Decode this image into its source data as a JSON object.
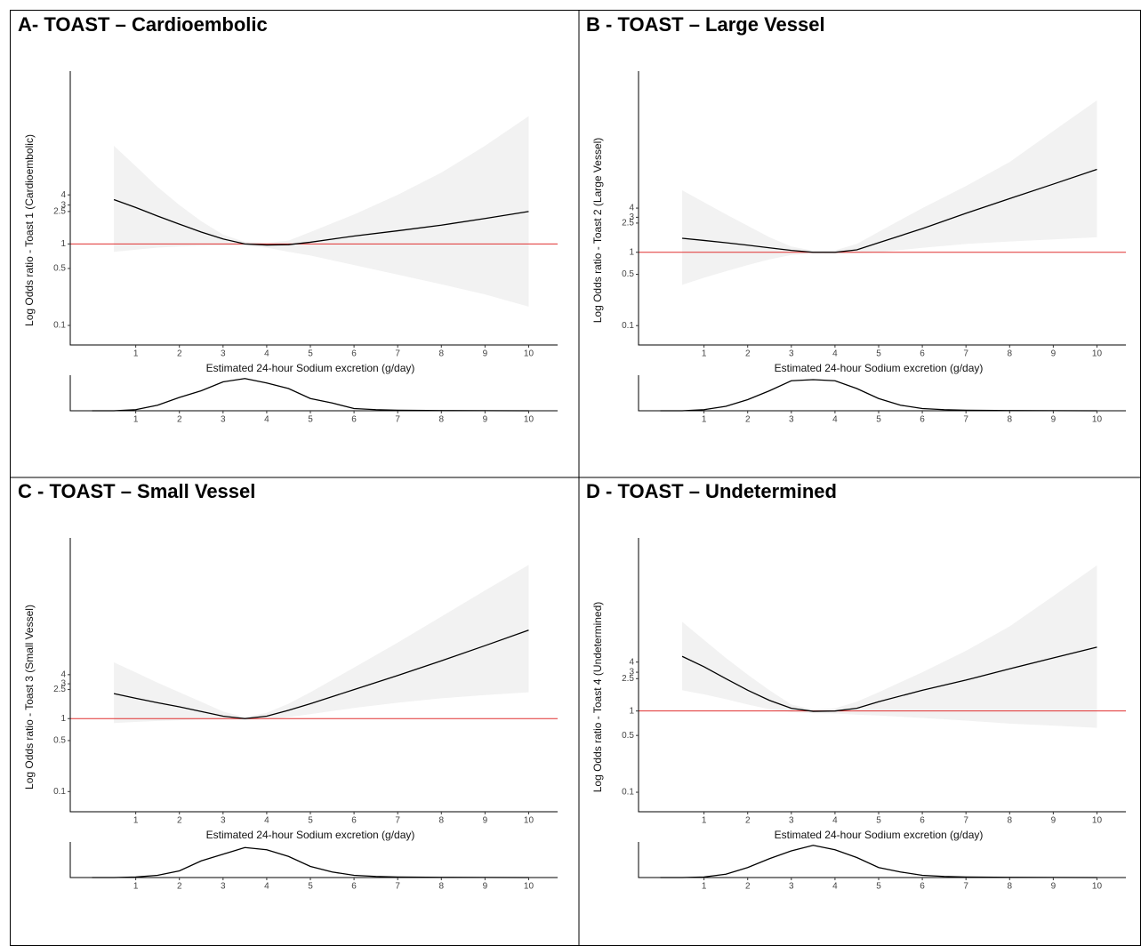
{
  "chart_data": [
    {
      "type": "line",
      "title": "A- TOAST – Cardioembolic",
      "x_label": "Estimated 24-hour Sodium excretion (g/day)",
      "y_label": "Log Odds ratio - Toast 1 (Cardioembolic)",
      "x": [
        0.5,
        1,
        1.5,
        2,
        2.5,
        3,
        3.5,
        4,
        4.5,
        5,
        6,
        7,
        8,
        9,
        10
      ],
      "values": [
        3.5,
        2.8,
        2.2,
        1.75,
        1.4,
        1.15,
        1.0,
        0.97,
        0.98,
        1.05,
        1.25,
        1.45,
        1.7,
        2.05,
        2.5
      ],
      "band_upper": [
        16,
        9,
        5,
        3,
        1.9,
        1.3,
        1.06,
        1.03,
        1.1,
        1.4,
        2.3,
        4,
        7.5,
        16,
        37
      ],
      "band_lower": [
        0.8,
        0.85,
        0.9,
        0.93,
        0.95,
        0.96,
        0.95,
        0.9,
        0.8,
        0.72,
        0.55,
        0.42,
        0.32,
        0.24,
        0.17
      ],
      "color": "#000000",
      "band_color": "#f2f2f2",
      "reference_line": 1,
      "reference_color": "#e03030",
      "log_y": true,
      "xlim": [
        -0.5,
        10.5
      ],
      "ylim": [
        0.074,
        132
      ],
      "xticks": [
        1,
        2,
        3,
        4,
        5,
        6,
        7,
        8,
        9,
        10
      ],
      "yticks": [
        0.1,
        0.5,
        1,
        2.5,
        3,
        4
      ]
    },
    {
      "type": "density",
      "x": [
        0,
        0.5,
        1,
        1.5,
        2,
        2.5,
        3,
        3.5,
        4,
        4.5,
        5,
        5.5,
        6,
        6.5,
        7,
        8,
        9,
        10
      ],
      "values": [
        0,
        0,
        0.01,
        0.05,
        0.12,
        0.18,
        0.26,
        0.29,
        0.25,
        0.2,
        0.11,
        0.07,
        0.02,
        0.01,
        0.005,
        0.002,
        0.001,
        0
      ],
      "color": "#000000",
      "xlim": [
        -0.5,
        10.5
      ],
      "ylim": [
        0,
        0.32
      ],
      "xticks": [
        1,
        2,
        3,
        4,
        5,
        6,
        7,
        8,
        9,
        10
      ]
    },
    {
      "type": "line",
      "title": "B - TOAST – Large Vessel",
      "x_label": "Estimated 24-hour Sodium excretion (g/day)",
      "y_label": "Log Odds ratio - Toast 2 (Large Vessel)",
      "x": [
        0.5,
        1,
        1.5,
        2,
        2.5,
        3,
        3.5,
        4,
        4.5,
        5,
        6,
        7,
        8,
        9,
        10
      ],
      "values": [
        1.55,
        1.45,
        1.35,
        1.25,
        1.15,
        1.06,
        1.0,
        1.0,
        1.08,
        1.35,
        2.1,
        3.4,
        5.4,
        8.5,
        13.5
      ],
      "band_upper": [
        7,
        4.8,
        3.3,
        2.3,
        1.6,
        1.2,
        1.05,
        1.06,
        1.3,
        1.9,
        4,
        8,
        17,
        45,
        118
      ],
      "band_lower": [
        0.36,
        0.45,
        0.55,
        0.67,
        0.8,
        0.92,
        0.96,
        0.95,
        0.97,
        1.0,
        1.15,
        1.3,
        1.4,
        1.5,
        1.6
      ],
      "color": "#000000",
      "band_color": "#f2f2f2",
      "reference_line": 1,
      "reference_color": "#e03030",
      "log_y": true,
      "xlim": [
        -0.5,
        10.5
      ],
      "ylim": [
        0.072,
        295
      ],
      "xticks": [
        1,
        2,
        3,
        4,
        5,
        6,
        7,
        8,
        9,
        10
      ],
      "yticks": [
        0.1,
        0.5,
        1,
        2.5,
        3,
        4
      ]
    },
    {
      "type": "density",
      "x": [
        0,
        0.5,
        1,
        1.5,
        2,
        2.5,
        3,
        3.5,
        4,
        4.5,
        5,
        5.5,
        6,
        6.5,
        7,
        8,
        9,
        10
      ],
      "values": [
        0,
        0,
        0.01,
        0.04,
        0.1,
        0.18,
        0.27,
        0.28,
        0.27,
        0.2,
        0.11,
        0.05,
        0.02,
        0.01,
        0.005,
        0.002,
        0.001,
        0
      ],
      "color": "#000000",
      "xlim": [
        -0.5,
        10.5
      ],
      "ylim": [
        0,
        0.32
      ],
      "xticks": [
        1,
        2,
        3,
        4,
        5,
        6,
        7,
        8,
        9,
        10
      ]
    },
    {
      "type": "line",
      "title": "C - TOAST – Small Vessel",
      "x_label": "Estimated 24-hour Sodium excretion (g/day)",
      "y_label": "Log Odds ratio - Toast 3 (Small Vessel)",
      "x": [
        0.5,
        1,
        1.5,
        2,
        2.5,
        3,
        3.5,
        4,
        4.5,
        5,
        6,
        7,
        8,
        9,
        10
      ],
      "values": [
        2.2,
        1.9,
        1.65,
        1.45,
        1.25,
        1.08,
        1.0,
        1.08,
        1.3,
        1.6,
        2.5,
        3.9,
        6.2,
        10,
        16.3
      ],
      "band_upper": [
        5.9,
        4.3,
        3.1,
        2.3,
        1.7,
        1.25,
        1.05,
        1.2,
        1.6,
        2.3,
        5,
        11,
        25,
        57,
        128
      ],
      "band_lower": [
        0.87,
        0.9,
        0.93,
        0.95,
        0.97,
        0.97,
        0.96,
        0.98,
        1.05,
        1.15,
        1.4,
        1.65,
        1.9,
        2.1,
        2.3
      ],
      "color": "#000000",
      "band_color": "#f2f2f2",
      "reference_line": 1,
      "reference_color": "#e03030",
      "log_y": true,
      "xlim": [
        -0.5,
        10.5
      ],
      "ylim": [
        0.07,
        300
      ],
      "xticks": [
        1,
        2,
        3,
        4,
        5,
        6,
        7,
        8,
        9,
        10
      ],
      "yticks": [
        0.1,
        0.5,
        1,
        2.5,
        3,
        4
      ]
    },
    {
      "type": "density",
      "x": [
        0,
        0.5,
        1,
        1.5,
        2,
        2.5,
        3,
        3.5,
        4,
        4.5,
        5,
        5.5,
        6,
        6.5,
        7,
        8,
        9,
        10
      ],
      "values": [
        0,
        0,
        0.005,
        0.02,
        0.06,
        0.15,
        0.21,
        0.27,
        0.25,
        0.19,
        0.1,
        0.05,
        0.02,
        0.01,
        0.005,
        0.002,
        0.001,
        0
      ],
      "color": "#000000",
      "xlim": [
        -0.5,
        10.5
      ],
      "ylim": [
        0,
        0.32
      ],
      "xticks": [
        1,
        2,
        3,
        4,
        5,
        6,
        7,
        8,
        9,
        10
      ]
    },
    {
      "type": "line",
      "title": "D - TOAST – Undetermined",
      "x_label": "Estimated 24-hour Sodium excretion (g/day)",
      "y_label": "Log Odds ratio - Toast 4 (Undetermined)",
      "x": [
        0.5,
        1,
        1.5,
        2,
        2.5,
        3,
        3.5,
        4,
        4.5,
        5,
        6,
        7,
        8,
        9,
        10
      ],
      "values": [
        4.7,
        3.5,
        2.5,
        1.8,
        1.35,
        1.08,
        0.99,
        1.0,
        1.08,
        1.3,
        1.8,
        2.4,
        3.3,
        4.5,
        6.1
      ],
      "band_upper": [
        12.5,
        7.5,
        4.5,
        2.8,
        1.8,
        1.2,
        1.04,
        1.08,
        1.3,
        1.7,
        3,
        5.5,
        11,
        26,
        62
      ],
      "band_lower": [
        1.8,
        1.6,
        1.4,
        1.2,
        1.05,
        0.97,
        0.94,
        0.93,
        0.9,
        0.88,
        0.82,
        0.76,
        0.7,
        0.66,
        0.62
      ],
      "color": "#000000",
      "band_color": "#f2f2f2",
      "reference_line": 1,
      "reference_color": "#e03030",
      "log_y": true,
      "xlim": [
        -0.5,
        10.5
      ],
      "ylim": [
        0.074,
        135
      ],
      "xticks": [
        1,
        2,
        3,
        4,
        5,
        6,
        7,
        8,
        9,
        10
      ],
      "yticks": [
        0.1,
        0.5,
        1,
        2.5,
        3,
        4
      ]
    },
    {
      "type": "density",
      "x": [
        0,
        0.5,
        1,
        1.5,
        2,
        2.5,
        3,
        3.5,
        4,
        4.5,
        5,
        5.5,
        6,
        6.5,
        7,
        8,
        9,
        10
      ],
      "values": [
        0,
        0,
        0.005,
        0.03,
        0.09,
        0.17,
        0.24,
        0.29,
        0.25,
        0.18,
        0.09,
        0.05,
        0.02,
        0.01,
        0.005,
        0.002,
        0.001,
        0
      ],
      "color": "#000000",
      "xlim": [
        -0.5,
        10.5
      ],
      "ylim": [
        0,
        0.32
      ],
      "xticks": [
        1,
        2,
        3,
        4,
        5,
        6,
        7,
        8,
        9,
        10
      ]
    }
  ]
}
